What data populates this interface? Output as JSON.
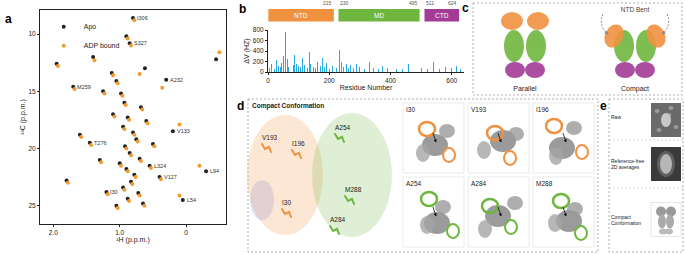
{
  "chart_data": [
    {
      "type": "scatter",
      "title": "a",
      "x_label": "¹H (p.p.m.)",
      "y_label": "¹³C (p.p.m.)",
      "xlim": [
        2.2,
        -0.6
      ],
      "xticks": [
        {
          "value": 2,
          "label": "2.0"
        },
        {
          "value": 1,
          "label": "1.0"
        },
        0
      ],
      "ylim": [
        26.6,
        7.9
      ],
      "yticks": [
        10,
        15,
        20,
        25
      ],
      "grid": false,
      "legend": "upper left",
      "marker": "circle",
      "series": [
        {
          "name": "Apo",
          "color": "#222222",
          "x": [
            1.95,
            0.8,
            0.9,
            0.85,
            1.12,
            1.05,
            0.98,
            0.93,
            0.88,
            0.95,
            0.8,
            0.75,
            0.92,
            0.85,
            0.7,
            1.0,
            0.9,
            0.78,
            0.83,
            0.95,
            0.72,
            0.88,
            0.65,
            1.45,
            1.6,
            1.3,
            1.2,
            0.6,
            0.55,
            0.4,
            0.2,
            0.05,
            -0.3,
            -0.45,
            1.25,
            1.7,
            1.1,
            0.68,
            0.5,
            1.8,
            1.05,
            0.3,
            0.62,
            1.4
          ],
          "values": [
            12.6,
            8.6,
            10.2,
            10.8,
            13.4,
            14.1,
            15.2,
            16.0,
            17.3,
            18.1,
            18.6,
            19.2,
            19.8,
            20.4,
            20.9,
            21.3,
            21.8,
            22.3,
            22.9,
            23.4,
            23.9,
            24.4,
            24.8,
            19.5,
            18.8,
            21.0,
            23.8,
            17.6,
            21.5,
            22.5,
            18.5,
            24.5,
            22.0,
            12.2,
            15.0,
            14.6,
            17.0,
            16.4,
            19.6,
            22.8,
            25.0,
            14.0,
            13.0,
            12.0
          ]
        },
        {
          "name": "ADP bound",
          "color": "#f29a2e",
          "x": [
            1.93,
            0.78,
            0.88,
            0.83,
            1.1,
            1.03,
            0.96,
            0.91,
            0.86,
            0.93,
            0.78,
            0.73,
            0.9,
            0.83,
            0.68,
            0.98,
            0.88,
            0.76,
            0.81,
            0.93,
            0.7,
            0.86,
            0.63,
            1.43,
            1.58,
            1.28,
            1.18,
            0.58,
            0.53,
            0.38,
            0.1,
            0.1,
            -0.2,
            -0.5,
            1.23,
            1.68,
            1.08,
            0.66,
            0.48,
            1.78,
            1.03,
            0.36,
            0.7,
            1.38
          ],
          "values": [
            12.8,
            8.8,
            10.4,
            11.0,
            13.6,
            14.3,
            15.4,
            16.2,
            17.5,
            18.3,
            18.8,
            19.4,
            20.0,
            20.6,
            21.1,
            21.5,
            22.0,
            22.5,
            23.1,
            23.6,
            24.1,
            24.6,
            25.0,
            19.7,
            19.0,
            21.2,
            24.0,
            17.8,
            21.7,
            22.7,
            17.9,
            24.1,
            21.5,
            11.6,
            15.2,
            14.8,
            17.2,
            16.6,
            19.8,
            23.0,
            25.2,
            14.7,
            13.5,
            12.3
          ]
        }
      ],
      "annotations": [
        {
          "text": "I306",
          "x": 0.8,
          "y": 8.6
        },
        {
          "text": "S327",
          "x": 0.85,
          "y": 10.8
        },
        {
          "text": "A232",
          "x": 0.3,
          "y": 14.0
        },
        {
          "text": "V133",
          "x": 0.2,
          "y": 18.5
        },
        {
          "text": "L94",
          "x": -0.3,
          "y": 22.0
        },
        {
          "text": "L54",
          "x": 0.05,
          "y": 24.5
        },
        {
          "text": "M259",
          "x": 1.7,
          "y": 14.6
        },
        {
          "text": "L324",
          "x": 0.55,
          "y": 21.5
        },
        {
          "text": "V127",
          "x": 0.4,
          "y": 22.5
        },
        {
          "text": "I30",
          "x": 1.2,
          "y": 23.8
        },
        {
          "text": "T276",
          "x": 1.45,
          "y": 19.5
        }
      ]
    },
    {
      "type": "bar",
      "title": "b",
      "x_label": "Residue Number",
      "y_label": "ΔV (HZ)",
      "x": [
        5,
        12,
        20,
        28,
        33,
        40,
        45,
        52,
        58,
        63,
        68,
        75,
        82,
        88,
        93,
        100,
        107,
        113,
        120,
        128,
        135,
        140,
        148,
        155,
        162,
        170,
        178,
        185,
        192,
        200,
        210,
        225,
        232,
        240,
        248,
        255,
        262,
        270,
        280,
        290,
        300,
        315,
        330,
        345,
        360,
        375,
        390,
        405,
        420,
        440,
        460,
        480,
        500,
        520,
        540,
        560,
        580,
        600,
        615,
        630
      ],
      "values": [
        80,
        150,
        60,
        220,
        120,
        90,
        180,
        300,
        760,
        250,
        100,
        200,
        140,
        320,
        160,
        110,
        90,
        260,
        130,
        70,
        380,
        150,
        100,
        80,
        200,
        120,
        260,
        90,
        170,
        60,
        110,
        80,
        420,
        200,
        100,
        150,
        80,
        130,
        70,
        160,
        90,
        60,
        200,
        80,
        50,
        110,
        70,
        90,
        50,
        60,
        150,
        40,
        80,
        60,
        200,
        50,
        90,
        70,
        120,
        60
      ],
      "color": "#2aa9e0",
      "xlim": [
        0,
        640
      ],
      "xticks": [
        0,
        200,
        400,
        600
      ],
      "ylim": [
        0,
        800
      ],
      "yticks": [
        0,
        200,
        400,
        600,
        800
      ],
      "grid": false,
      "domains": [
        {
          "name": "NTD",
          "start": 1,
          "end": 215,
          "color": "#f0913f"
        },
        {
          "name": "MD",
          "start": 230,
          "end": 495,
          "color": "#6fb63f"
        },
        {
          "name": "CTD",
          "start": 511,
          "end": 624,
          "color": "#a23b96"
        }
      ],
      "boundary_labels": [
        215,
        230,
        495,
        511,
        624
      ]
    }
  ],
  "diagrams": [
    {
      "label": "c",
      "names": [
        "Parallel",
        "Compact"
      ],
      "note": "NTD Bent"
    },
    {
      "label": "d",
      "title": "Compact Conformation",
      "residues": [
        "V193",
        "I196",
        "A254",
        "I30",
        "M288",
        "A284"
      ],
      "closeups": [
        "I30",
        "V193",
        "I196",
        "A254",
        "A284",
        "M288"
      ]
    },
    {
      "label": "e",
      "rows": [
        "Raw",
        "Reference-free 2D averages",
        "Compact Conformation"
      ]
    }
  ]
}
